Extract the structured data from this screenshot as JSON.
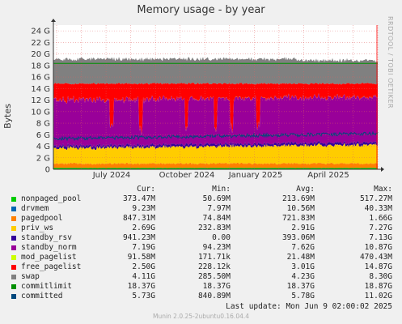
{
  "title": "Memory usage - by year",
  "side_label": "RRDTOOL / TOBI OETIKER",
  "footer": "Munin 2.0.25-2ubuntu0.16.04.4",
  "last_update": "Last update:  Mon Jun  9 02:00:02 2025",
  "legend_header": {
    "cur": "Cur:",
    "min": "Min:",
    "avg": "Avg:",
    "max": "Max:"
  },
  "legend": [
    {
      "name": "nonpaged_pool",
      "cur": "373.47M",
      "min": "50.69M",
      "avg": "213.69M",
      "max": "517.27M",
      "color": "#00cc00"
    },
    {
      "name": "drvmem",
      "cur": "9.23M",
      "min": "7.97M",
      "avg": "10.56M",
      "max": "40.33M",
      "color": "#0066b3"
    },
    {
      "name": "pagedpool",
      "cur": "847.31M",
      "min": "74.84M",
      "avg": "721.83M",
      "max": "1.66G",
      "color": "#ff8000"
    },
    {
      "name": "priv_ws",
      "cur": "2.69G",
      "min": "232.83M",
      "avg": "2.91G",
      "max": "7.27G",
      "color": "#ffcc00"
    },
    {
      "name": "standby_rsv",
      "cur": "941.23M",
      "min": "0.00",
      "avg": "393.06M",
      "max": "7.13G",
      "color": "#330099"
    },
    {
      "name": "standby_norm",
      "cur": "7.19G",
      "min": "94.23M",
      "avg": "7.62G",
      "max": "10.87G",
      "color": "#990099"
    },
    {
      "name": "mod_pagelist",
      "cur": "91.58M",
      "min": "171.71k",
      "avg": "21.48M",
      "max": "470.43M",
      "color": "#ccff00"
    },
    {
      "name": "free_pagelist",
      "cur": "2.50G",
      "min": "228.12k",
      "avg": "3.01G",
      "max": "14.87G",
      "color": "#ff0000"
    },
    {
      "name": "swap",
      "cur": "4.11G",
      "min": "285.50M",
      "avg": "4.23G",
      "max": "8.30G",
      "color": "#808080"
    },
    {
      "name": "commitlimit",
      "cur": "18.37G",
      "min": "18.37G",
      "avg": "18.37G",
      "max": "18.87G",
      "color": "#008f00"
    },
    {
      "name": "committed",
      "cur": "5.73G",
      "min": "840.89M",
      "avg": "5.78G",
      "max": "11.02G",
      "color": "#00487d"
    }
  ],
  "chart_data": {
    "type": "area",
    "title": "Memory usage - by year",
    "ylabel": "Bytes",
    "ylim": [
      0,
      25
    ],
    "y_unit": "G",
    "yticks": [
      "0",
      "2 G",
      "4 G",
      "6 G",
      "8 G",
      "10 G",
      "12 G",
      "14 G",
      "16 G",
      "18 G",
      "20 G",
      "22 G",
      "24 G"
    ],
    "xticks": [
      "July 2024",
      "October 2024",
      "January 2025",
      "April 2025"
    ],
    "x_range_months": [
      "2024-05",
      "2025-06"
    ],
    "grid": true,
    "stacked": true,
    "series_order": [
      "nonpaged_pool",
      "drvmem",
      "pagedpool",
      "priv_ws",
      "standby_rsv",
      "standby_norm",
      "mod_pagelist",
      "free_pagelist",
      "swap"
    ],
    "lines": [
      "commitlimit",
      "committed"
    ],
    "typical_values_G": {
      "nonpaged_pool": 0.21,
      "drvmem": 0.01,
      "pagedpool": 0.72,
      "priv_ws": 2.91,
      "standby_rsv": 0.39,
      "standby_norm": 7.62,
      "mod_pagelist": 0.02,
      "free_pagelist": 3.01,
      "swap": 4.23,
      "commitlimit": 18.37,
      "committed": 5.78
    }
  }
}
